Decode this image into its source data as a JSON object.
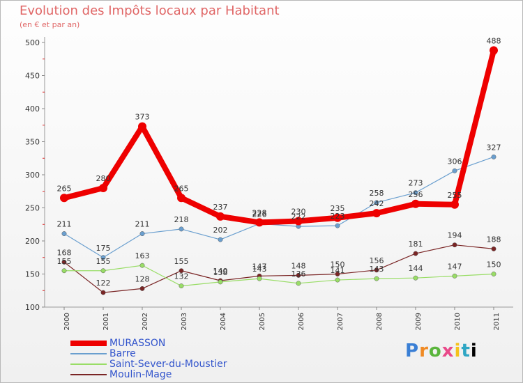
{
  "title": "Evolution des Impôts locaux par Habitant",
  "subtitle": "(en € et par an)",
  "logo": {
    "text": "Proxiti",
    "letters": [
      "P",
      "r",
      "o",
      "x",
      "i",
      "t",
      "i"
    ]
  },
  "chart_data": {
    "type": "line",
    "x": [
      "2000",
      "2001",
      "2002",
      "2003",
      "2004",
      "2005",
      "2006",
      "2007",
      "2008",
      "2009",
      "2010",
      "2011"
    ],
    "ylim": [
      100,
      500
    ],
    "yticks": [
      100,
      150,
      200,
      250,
      300,
      350,
      400,
      450,
      500
    ],
    "grid": false,
    "legend_position": "bottom-left",
    "series": [
      {
        "name": "MURASSON",
        "color": "#ee0000",
        "values": [
          265,
          280,
          373,
          265,
          237,
          228,
          230,
          235,
          242,
          256,
          255,
          488
        ]
      },
      {
        "name": "Barre",
        "color": "#6a9fcf",
        "values": [
          211,
          175,
          211,
          218,
          202,
          226,
          222,
          223,
          258,
          273,
          306,
          327
        ]
      },
      {
        "name": "Saint-Sever-du-Moustier",
        "color": "#99dd66",
        "values": [
          155,
          155,
          163,
          132,
          138,
          143,
          136,
          141,
          143,
          144,
          147,
          150
        ]
      },
      {
        "name": "Moulin-Mage",
        "color": "#7a2525",
        "values": [
          168,
          122,
          128,
          155,
          140,
          147,
          148,
          150,
          156,
          181,
          194,
          188
        ]
      }
    ]
  }
}
